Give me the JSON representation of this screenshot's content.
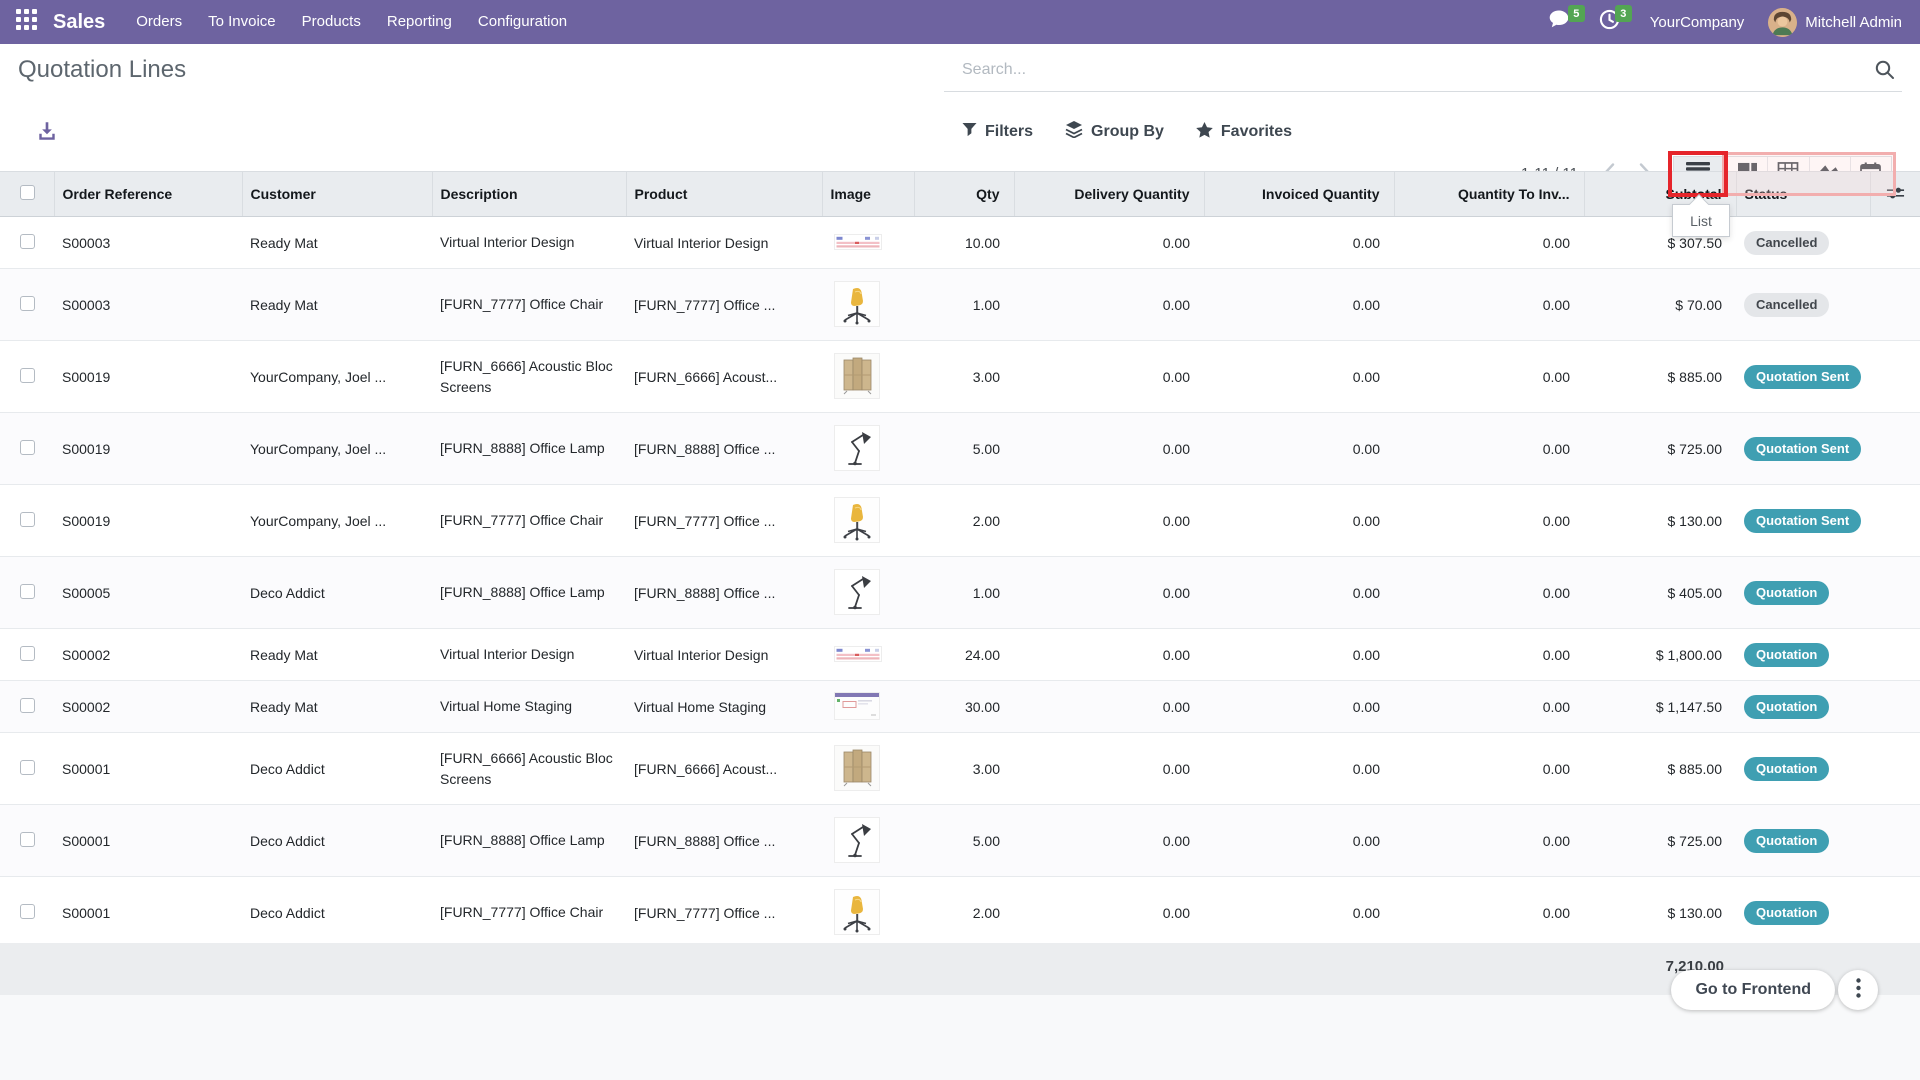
{
  "nav": {
    "app_label": "Sales",
    "menu_items": [
      "Orders",
      "To Invoice",
      "Products",
      "Reporting",
      "Configuration"
    ],
    "messages_badge": "5",
    "activities_badge": "3",
    "company": "YourCompany",
    "user": "Mitchell Admin"
  },
  "page": {
    "title": "Quotation Lines"
  },
  "search": {
    "placeholder": "Search..."
  },
  "controls": {
    "filters": "Filters",
    "group_by": "Group By",
    "favorites": "Favorites",
    "pager": "1-11 / 11",
    "view_tooltip": "List"
  },
  "table": {
    "headers": [
      "Order Reference",
      "Customer",
      "Description",
      "Product",
      "Image",
      "Qty",
      "Delivery Quantity",
      "Invoiced Quantity",
      "Quantity To Inv...",
      "Subtotal",
      "Status"
    ],
    "rows": [
      {
        "ref": "S00003",
        "customer": "Ready Mat",
        "description": "Virtual Interior Design",
        "product": "Virtual Interior Design",
        "image": "interior-design-thumb",
        "qty": "10.00",
        "delivery_qty": "0.00",
        "invoiced_qty": "0.00",
        "qty_to_invoice": "0.00",
        "subtotal": "$ 307.50",
        "status": "Cancelled",
        "status_type": "cancelled"
      },
      {
        "ref": "S00003",
        "customer": "Ready Mat",
        "description": "[FURN_7777] Office Chair",
        "product": "[FURN_7777] Office ...",
        "image": "office-chair-thumb",
        "qty": "1.00",
        "delivery_qty": "0.00",
        "invoiced_qty": "0.00",
        "qty_to_invoice": "0.00",
        "subtotal": "$ 70.00",
        "status": "Cancelled",
        "status_type": "cancelled"
      },
      {
        "ref": "S00019",
        "customer": "YourCompany, Joel ...",
        "description": "[FURN_6666] Acoustic Bloc Screens",
        "product": "[FURN_6666] Acoust...",
        "image": "acoustic-screens-thumb",
        "qty": "3.00",
        "delivery_qty": "0.00",
        "invoiced_qty": "0.00",
        "qty_to_invoice": "0.00",
        "subtotal": "$ 885.00",
        "status": "Quotation Sent",
        "status_type": "sent"
      },
      {
        "ref": "S00019",
        "customer": "YourCompany, Joel ...",
        "description": "[FURN_8888] Office Lamp",
        "product": "[FURN_8888] Office ...",
        "image": "office-lamp-thumb",
        "qty": "5.00",
        "delivery_qty": "0.00",
        "invoiced_qty": "0.00",
        "qty_to_invoice": "0.00",
        "subtotal": "$ 725.00",
        "status": "Quotation Sent",
        "status_type": "sent"
      },
      {
        "ref": "S00019",
        "customer": "YourCompany, Joel ...",
        "description": "[FURN_7777] Office Chair",
        "product": "[FURN_7777] Office ...",
        "image": "office-chair-thumb",
        "qty": "2.00",
        "delivery_qty": "0.00",
        "invoiced_qty": "0.00",
        "qty_to_invoice": "0.00",
        "subtotal": "$ 130.00",
        "status": "Quotation Sent",
        "status_type": "sent"
      },
      {
        "ref": "S00005",
        "customer": "Deco Addict",
        "description": "[FURN_8888] Office Lamp",
        "product": "[FURN_8888] Office ...",
        "image": "office-lamp-thumb",
        "qty": "1.00",
        "delivery_qty": "0.00",
        "invoiced_qty": "0.00",
        "qty_to_invoice": "0.00",
        "subtotal": "$ 405.00",
        "status": "Quotation",
        "status_type": "quotation"
      },
      {
        "ref": "S00002",
        "customer": "Ready Mat",
        "description": "Virtual Interior Design",
        "product": "Virtual Interior Design",
        "image": "interior-design-thumb",
        "qty": "24.00",
        "delivery_qty": "0.00",
        "invoiced_qty": "0.00",
        "qty_to_invoice": "0.00",
        "subtotal": "$ 1,800.00",
        "status": "Quotation",
        "status_type": "quotation"
      },
      {
        "ref": "S00002",
        "customer": "Ready Mat",
        "description": "Virtual Home Staging",
        "product": "Virtual Home Staging",
        "image": "home-staging-thumb",
        "qty": "30.00",
        "delivery_qty": "0.00",
        "invoiced_qty": "0.00",
        "qty_to_invoice": "0.00",
        "subtotal": "$ 1,147.50",
        "status": "Quotation",
        "status_type": "quotation"
      },
      {
        "ref": "S00001",
        "customer": "Deco Addict",
        "description": "[FURN_6666] Acoustic Bloc Screens",
        "product": "[FURN_6666] Acoust...",
        "image": "acoustic-screens-thumb",
        "qty": "3.00",
        "delivery_qty": "0.00",
        "invoiced_qty": "0.00",
        "qty_to_invoice": "0.00",
        "subtotal": "$ 885.00",
        "status": "Quotation",
        "status_type": "quotation"
      },
      {
        "ref": "S00001",
        "customer": "Deco Addict",
        "description": "[FURN_8888] Office Lamp",
        "product": "[FURN_8888] Office ...",
        "image": "office-lamp-thumb",
        "qty": "5.00",
        "delivery_qty": "0.00",
        "invoiced_qty": "0.00",
        "qty_to_invoice": "0.00",
        "subtotal": "$ 725.00",
        "status": "Quotation",
        "status_type": "quotation"
      },
      {
        "ref": "S00001",
        "customer": "Deco Addict",
        "description": "[FURN_7777] Office Chair",
        "product": "[FURN_7777] Office ...",
        "image": "office-chair-thumb",
        "qty": "2.00",
        "delivery_qty": "0.00",
        "invoiced_qty": "0.00",
        "qty_to_invoice": "0.00",
        "subtotal": "$ 130.00",
        "status": "Quotation",
        "status_type": "quotation"
      }
    ],
    "footer_total": "7,210.00"
  },
  "frontend": {
    "button": "Go to Frontend"
  },
  "colors": {
    "navbar": "#6E63A0",
    "badge_green": "#53A553",
    "status_teal": "#3F9FB2",
    "status_gray": "#E4E6E9",
    "annotation_red": "#E5252B",
    "annotation_pink": "#F2AEAE"
  }
}
